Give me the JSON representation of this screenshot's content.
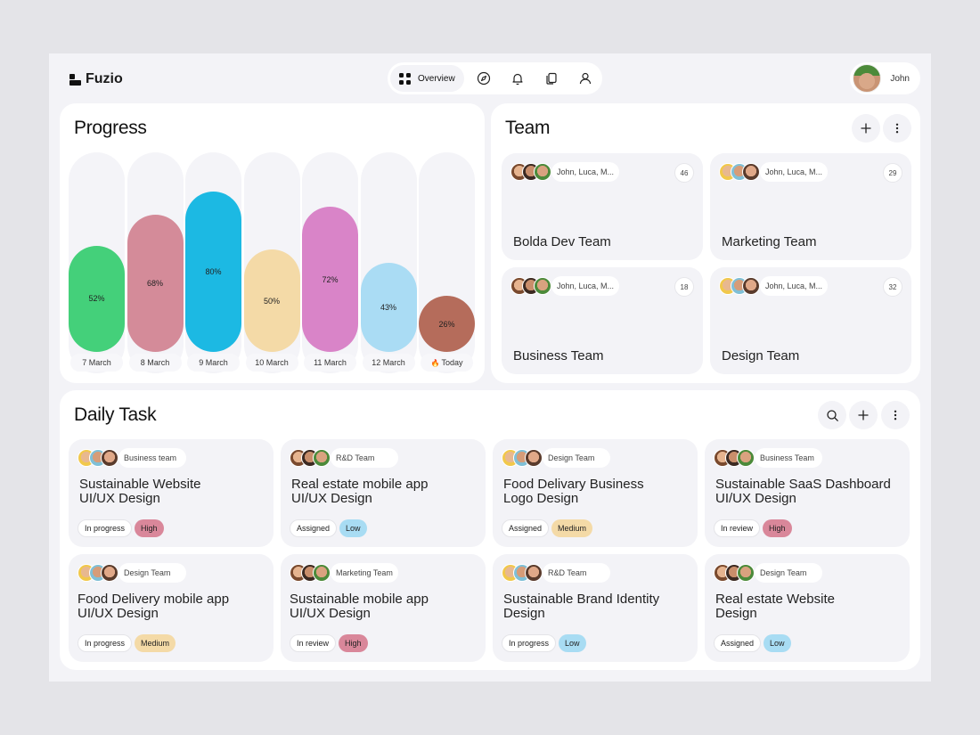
{
  "app": {
    "name": "Fuzio"
  },
  "nav": {
    "items": [
      {
        "label": "Overview",
        "icon": "grid-icon",
        "active": true
      },
      {
        "label": "",
        "icon": "compass-icon"
      },
      {
        "label": "",
        "icon": "bell-icon"
      },
      {
        "label": "",
        "icon": "documents-icon"
      },
      {
        "label": "",
        "icon": "user-icon"
      }
    ]
  },
  "user": {
    "name": "John"
  },
  "progress": {
    "title": "Progress",
    "today_emoji": "🔥"
  },
  "chart_data": {
    "type": "bar",
    "title": "Progress",
    "categories": [
      "7 March",
      "8 March",
      "9 March",
      "10 March",
      "11 March",
      "12 March",
      "Today"
    ],
    "values": [
      52,
      68,
      80,
      50,
      72,
      43,
      26
    ],
    "labels": [
      "52%",
      "68%",
      "80%",
      "50%",
      "72%",
      "43%",
      "26%"
    ],
    "colors": [
      "#44d07a",
      "#d48b99",
      "#1cb9e3",
      "#f4daa7",
      "#d984c8",
      "#aadcf4",
      "#b56c5b"
    ],
    "ylim": [
      0,
      100
    ],
    "grid": false
  },
  "team": {
    "title": "Team",
    "teams": [
      {
        "name": "Bolda Dev Team",
        "members": "John, Luca, M...",
        "count": "46"
      },
      {
        "name": "Marketing Team",
        "members": "John, Luca, M...",
        "count": "29"
      },
      {
        "name": "Business  Team",
        "members": "John, Luca, M...",
        "count": "18"
      },
      {
        "name": "Design  Team",
        "members": "John, Luca, M...",
        "count": "32"
      }
    ]
  },
  "daily": {
    "title": "Daily Task",
    "tasks": [
      {
        "team": "Business team",
        "title": "Sustainable Website\nUI/UX Design",
        "status": "In progress",
        "priority": "High"
      },
      {
        "team": "R&D Team",
        "title": "Real estate mobile app\nUI/UX Design",
        "status": "Assigned",
        "priority": "Low"
      },
      {
        "team": "Design Team",
        "title": "Food Delivary Business\nLogo Design",
        "status": "Assigned",
        "priority": "Medium"
      },
      {
        "team": "Business Team",
        "title": "Sustainable SaaS Dashboard\nUI/UX Design",
        "status": "In review",
        "priority": "High"
      },
      {
        "team": "Design Team",
        "title": "Food Delivery  mobile app\nUI/UX Design",
        "status": "In progress",
        "priority": "Medium"
      },
      {
        "team": "Marketing Team",
        "title": "Sustainable mobile app\nUI/UX Design",
        "status": "In review",
        "priority": "High"
      },
      {
        "team": "R&D Team",
        "title": "Sustainable Brand Identity\nDesign",
        "status": "In progress",
        "priority": "Low"
      },
      {
        "team": "Design Team",
        "title": "Real estate Website\nDesign",
        "status": "Assigned",
        "priority": "Low"
      }
    ],
    "priority_colors": {
      "High": "#d9879a",
      "Medium": "#f4daa7",
      "Low": "#a8dcf3"
    }
  }
}
